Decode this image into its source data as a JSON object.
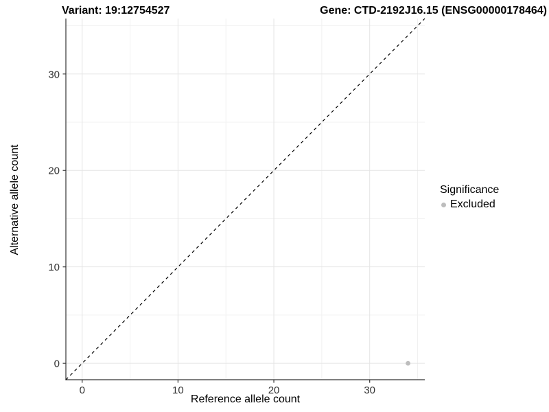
{
  "header": {
    "title_left": "Variant: 19:12754527",
    "title_right": "Gene: CTD-2192J16.15 (ENSG00000178464)"
  },
  "chart_data": {
    "type": "scatter",
    "xlabel": "Reference allele count",
    "ylabel": "Alternative allele count",
    "xlim": [
      -1.7,
      35.75
    ],
    "ylim": [
      -1.7,
      35.75
    ],
    "x_major_ticks": [
      0,
      10,
      20,
      30
    ],
    "y_major_ticks": [
      0,
      10,
      20,
      30
    ],
    "x_minor_ticks": [
      5,
      15,
      25,
      35
    ],
    "y_minor_ticks": [
      5,
      15,
      25,
      35
    ],
    "grid": "major+minor",
    "identity_line": {
      "style": "dashed",
      "slope": 1,
      "intercept": 0,
      "color": "#000000"
    },
    "series": [
      {
        "name": "Excluded",
        "color": "#bdbdbd",
        "points": [
          [
            34,
            0
          ]
        ]
      }
    ],
    "legend": {
      "title": "Significance",
      "position": "right",
      "items": [
        {
          "label": "Excluded",
          "color": "#bdbdbd"
        }
      ]
    }
  },
  "colors": {
    "background": "#ffffff",
    "grid_major": "#e4e4e4",
    "grid_minor": "#f1f1f1",
    "axis_line": "#333333",
    "tick_mark": "#333333",
    "tick_label": "#333333",
    "point": "#bdbdbd"
  }
}
